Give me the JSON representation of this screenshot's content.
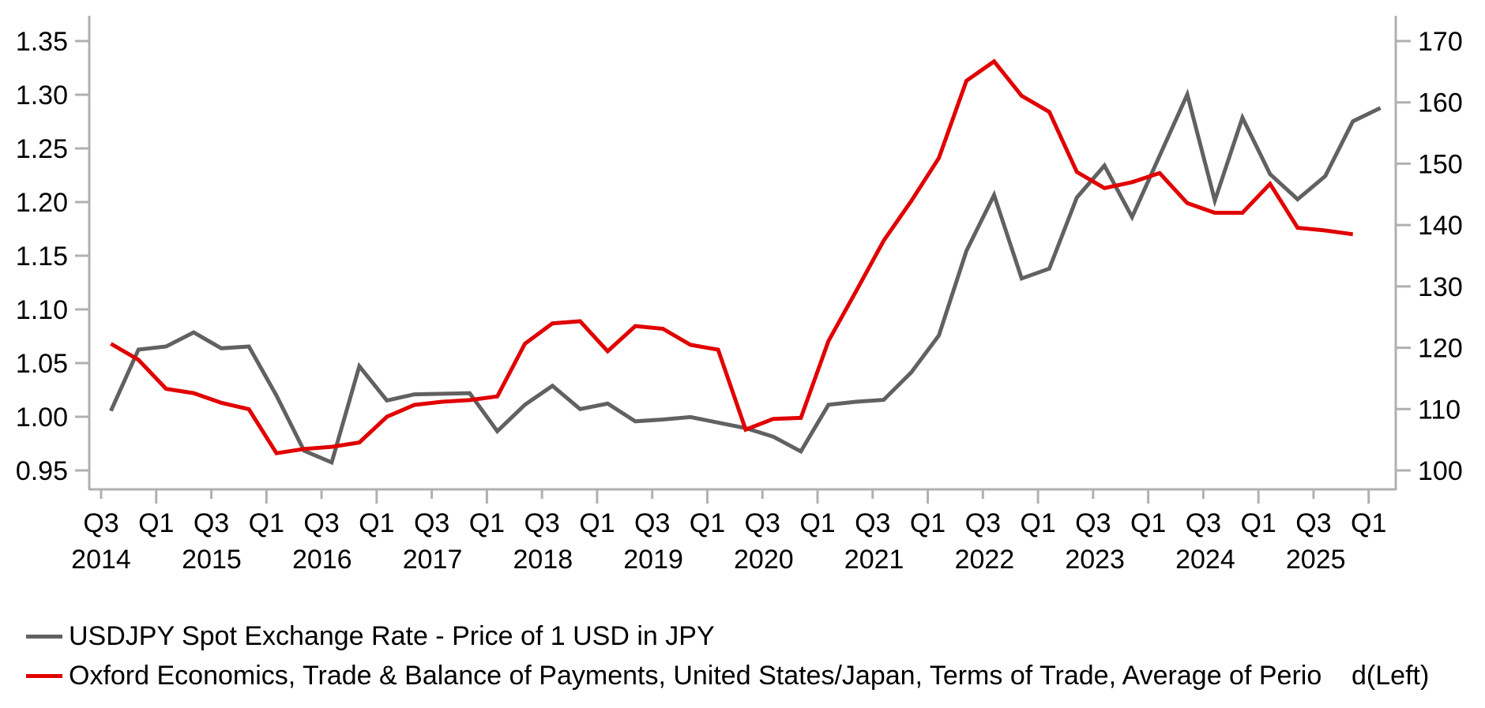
{
  "chart_data": {
    "type": "line",
    "title": "",
    "grid": false,
    "background": "#ffffff",
    "axis_color": "#b0b0b0",
    "legend_position": "bottom-left",
    "periods": [
      "2014Q3",
      "2014Q4",
      "2015Q1",
      "2015Q2",
      "2015Q3",
      "2015Q4",
      "2016Q1",
      "2016Q2",
      "2016Q3",
      "2016Q4",
      "2017Q1",
      "2017Q2",
      "2017Q3",
      "2017Q4",
      "2018Q1",
      "2018Q2",
      "2018Q3",
      "2018Q4",
      "2019Q1",
      "2019Q2",
      "2019Q3",
      "2019Q4",
      "2020Q1",
      "2020Q2",
      "2020Q3",
      "2020Q4",
      "2021Q1",
      "2021Q2",
      "2021Q3",
      "2021Q4",
      "2022Q1",
      "2022Q2",
      "2022Q3",
      "2022Q4",
      "2023Q1",
      "2023Q2",
      "2023Q3",
      "2023Q4",
      "2024Q1",
      "2024Q2",
      "2024Q3",
      "2024Q4",
      "2025Q1",
      "2025Q2",
      "2025Q3",
      "2025Q4",
      "2026Q1"
    ],
    "series": [
      {
        "name": "USDJPY Spot Exchange Rate - Price of 1 USD in JPY",
        "axis": "right",
        "color": "#616161",
        "values": [
          109.7,
          119.7,
          120.2,
          122.5,
          119.9,
          120.2,
          112.2,
          103.2,
          101.3,
          117.0,
          111.4,
          112.4,
          112.5,
          112.6,
          106.4,
          110.7,
          113.8,
          110.0,
          110.9,
          108.0,
          108.3,
          108.7,
          107.8,
          106.9,
          105.5,
          103.1,
          110.7,
          111.2,
          111.5,
          116.0,
          122.0,
          135.8,
          144.9,
          131.3,
          132.9,
          144.5,
          149.7,
          141.3,
          151.3,
          161.3,
          144.0,
          157.5,
          148.3,
          144.2,
          148.0,
          156.9,
          159.1
        ]
      },
      {
        "name": "Oxford Economics, Trade & Balance of Payments, United States/Japan, Terms of Trade, Average of Perio    d(Left)",
        "axis": "left",
        "color": "#e10000",
        "values": [
          1.068,
          1.053,
          1.026,
          1.022,
          1.013,
          1.007,
          0.966,
          0.97,
          0.972,
          0.976,
          1.0,
          1.011,
          1.014,
          1.0155,
          1.019,
          1.068,
          1.087,
          1.089,
          1.061,
          1.0845,
          1.082,
          1.067,
          1.0625,
          0.988,
          0.998,
          0.999,
          1.0705,
          1.117,
          1.164,
          1.201,
          1.241,
          1.313,
          1.331,
          1.299,
          1.284,
          1.228,
          1.213,
          1.2185,
          1.227,
          1.199,
          1.19,
          1.19,
          1.217,
          1.176,
          1.1735,
          1.17
        ]
      }
    ],
    "left_axis": {
      "min": 0.95,
      "max": 1.35,
      "tick_labels": [
        "1.35",
        "1.30",
        "1.25",
        "1.20",
        "1.15",
        "1.10",
        "1.05",
        "1.00",
        "0.95"
      ]
    },
    "right_axis": {
      "min": 100,
      "max": 170,
      "tick_labels": [
        "170",
        "160",
        "150",
        "140",
        "130",
        "120",
        "110",
        "100"
      ]
    },
    "x_axis": {
      "tick_labels": [
        "Q3",
        "Q1",
        "Q3",
        "Q1",
        "Q3",
        "Q1",
        "Q3",
        "Q1",
        "Q3",
        "Q1",
        "Q3",
        "Q1",
        "Q3",
        "Q1",
        "Q3",
        "Q1",
        "Q3",
        "Q1",
        "Q3",
        "Q1",
        "Q3",
        "Q1",
        "Q3",
        "Q1"
      ],
      "year_labels": [
        "2014",
        "2015",
        "2016",
        "2017",
        "2018",
        "2019",
        "2020",
        "2021",
        "2022",
        "2023",
        "2024",
        "2025"
      ]
    }
  }
}
